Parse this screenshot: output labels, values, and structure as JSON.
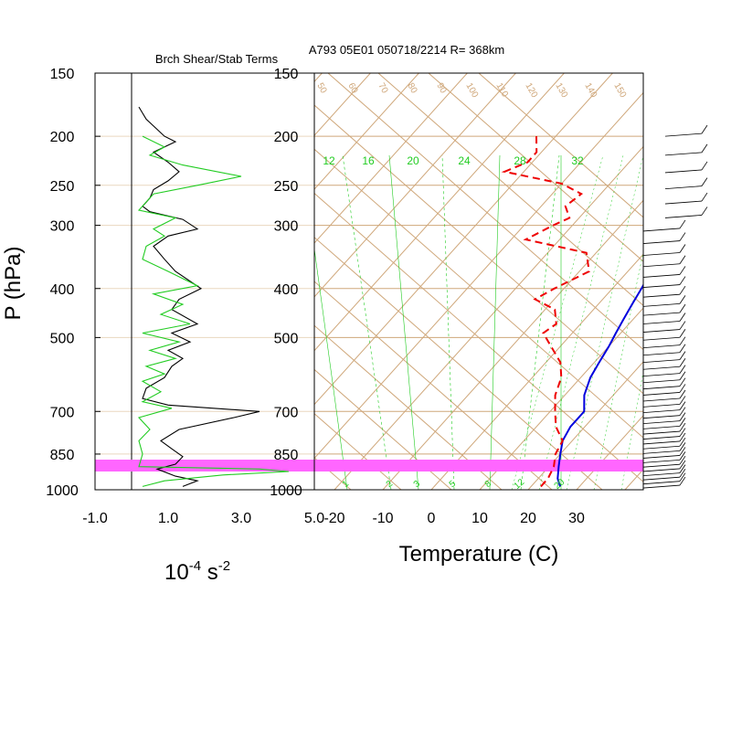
{
  "title": "A793 05E01 050718/2214 R= 368km",
  "left_panel_title": "Brch Shear/Stab Terms",
  "y_axis_label": "P (hPa)",
  "x_axis_label_right": "Temperature (C)",
  "left_units": {
    "base": "10",
    "exp1": "-4",
    "mid": " s",
    "exp2": "-2"
  },
  "pressure_ticks": [
    "150",
    "200",
    "250",
    "300",
    "400",
    "500",
    "700",
    "850",
    "1000"
  ],
  "left_x_ticks": [
    "-1.0",
    "1.0",
    "3.0",
    "5.0"
  ],
  "temp_x_ticks": [
    "-20",
    "-10",
    "0",
    "10",
    "20",
    "30"
  ],
  "mixing_ratio_labels_top": [
    "12",
    "16",
    "20",
    "24",
    "28",
    "32"
  ],
  "mixing_ratio_labels_bottom": [
    "1",
    "2",
    "3",
    "5",
    "8",
    "12",
    "20"
  ],
  "isotherm_labels": [
    "50",
    "60",
    "70",
    "80",
    "90",
    "100",
    "110",
    "120",
    "130",
    "140",
    "150"
  ],
  "colors": {
    "temperature": "#0000dd",
    "dewpoint": "#ee0000",
    "stability_term": "#000000",
    "shear_term": "#00dd00",
    "background_lines": "#cfa77a",
    "mixing_ratio": "#22cc22",
    "highlight_band": "#ff66ff",
    "grid": "#ead7bf"
  },
  "chart_data": [
    {
      "type": "line",
      "panel": "left",
      "title": "Brch Shear/Stab Terms",
      "xlim": [
        -1.0,
        5.0
      ],
      "ylim": [
        1000,
        150
      ],
      "series": [
        {
          "color": "#000000",
          "points": [
            [
              0.2,
              175
            ],
            [
              0.4,
              185
            ],
            [
              0.9,
              200
            ],
            [
              1.2,
              205
            ],
            [
              0.6,
              215
            ],
            [
              1.0,
              225
            ],
            [
              1.3,
              235
            ],
            [
              1.0,
              245
            ],
            [
              0.6,
              255
            ],
            [
              0.5,
              265
            ],
            [
              0.3,
              275
            ],
            [
              0.5,
              282
            ],
            [
              1.4,
              292
            ],
            [
              1.8,
              305
            ],
            [
              1.0,
              315
            ],
            [
              0.6,
              330
            ],
            [
              0.9,
              350
            ],
            [
              1.2,
              370
            ],
            [
              1.9,
              400
            ],
            [
              1.3,
              420
            ],
            [
              1.1,
              440
            ],
            [
              1.8,
              470
            ],
            [
              1.1,
              490
            ],
            [
              1.6,
              510
            ],
            [
              1.0,
              530
            ],
            [
              1.4,
              550
            ],
            [
              1.1,
              570
            ],
            [
              0.9,
              600
            ],
            [
              0.4,
              630
            ],
            [
              0.3,
              660
            ],
            [
              1.0,
              680
            ],
            [
              3.5,
              700
            ],
            [
              2.8,
              720
            ],
            [
              1.3,
              760
            ],
            [
              0.8,
              800
            ],
            [
              1.1,
              830
            ],
            [
              1.4,
              860
            ],
            [
              1.2,
              890
            ],
            [
              0.7,
              910
            ],
            [
              1.2,
              940
            ],
            [
              1.8,
              960
            ],
            [
              1.4,
              985
            ]
          ]
        },
        {
          "color": "#22cc22",
          "points": [
            [
              0.3,
              200
            ],
            [
              0.9,
              210
            ],
            [
              0.5,
              218
            ],
            [
              1.4,
              228
            ],
            [
              3.0,
              240
            ],
            [
              1.8,
              250
            ],
            [
              0.6,
              260
            ],
            [
              0.2,
              280
            ],
            [
              1.2,
              290
            ],
            [
              0.6,
              305
            ],
            [
              0.9,
              315
            ],
            [
              0.4,
              330
            ],
            [
              0.3,
              350
            ],
            [
              1.0,
              370
            ],
            [
              1.8,
              395
            ],
            [
              0.6,
              410
            ],
            [
              1.4,
              430
            ],
            [
              0.8,
              450
            ],
            [
              1.6,
              470
            ],
            [
              0.3,
              490
            ],
            [
              1.3,
              510
            ],
            [
              0.5,
              530
            ],
            [
              1.2,
              550
            ],
            [
              0.4,
              570
            ],
            [
              0.9,
              590
            ],
            [
              0.3,
              610
            ],
            [
              0.8,
              640
            ],
            [
              0.3,
              670
            ],
            [
              1.1,
              690
            ],
            [
              0.2,
              720
            ],
            [
              0.5,
              760
            ],
            [
              0.2,
              800
            ],
            [
              0.3,
              850
            ],
            [
              0.2,
              900
            ],
            [
              3.5,
              910
            ],
            [
              4.3,
              920
            ],
            [
              2.5,
              935
            ],
            [
              0.9,
              960
            ],
            [
              0.3,
              985
            ]
          ]
        }
      ]
    },
    {
      "type": "line",
      "panel": "right",
      "title": "A793 05E01 050718/2214 R= 368km",
      "xlabel": "Temperature (C)",
      "ylabel": "P (hPa)",
      "xlim": [
        -23,
        42
      ],
      "ylim": [
        1000,
        150
      ],
      "series": [
        {
          "color": "#0000dd",
          "style": "solid",
          "points": [
            [
              -19,
              175
            ],
            [
              -15,
              190
            ],
            [
              -12,
              205
            ],
            [
              -10,
              220
            ],
            [
              -8,
              235
            ],
            [
              -6,
              250
            ],
            [
              -4,
              265
            ],
            [
              -2,
              280
            ],
            [
              0,
              295
            ],
            [
              1,
              310
            ],
            [
              2,
              330
            ],
            [
              3,
              350
            ],
            [
              5,
              375
            ],
            [
              6,
              400
            ],
            [
              7,
              430
            ],
            [
              8,
              460
            ],
            [
              9,
              490
            ],
            [
              10,
              520
            ],
            [
              11,
              560
            ],
            [
              12,
              600
            ],
            [
              14,
              650
            ],
            [
              17,
              700
            ],
            [
              17,
              750
            ],
            [
              18,
              800
            ],
            [
              20,
              850
            ],
            [
              22,
              900
            ],
            [
              24,
              950
            ],
            [
              26,
              985
            ]
          ]
        },
        {
          "color": "#ee0000",
          "style": "dashed",
          "points": [
            [
              -44,
              200
            ],
            [
              -41,
              215
            ],
            [
              -41,
              225
            ],
            [
              -44,
              235
            ],
            [
              -30,
              248
            ],
            [
              -24,
              260
            ],
            [
              -25,
              275
            ],
            [
              -22,
              290
            ],
            [
              -24,
              300
            ],
            [
              -27,
              320
            ],
            [
              -12,
              340
            ],
            [
              -8,
              370
            ],
            [
              -12,
              400
            ],
            [
              -14,
              420
            ],
            [
              -8,
              440
            ],
            [
              -5,
              470
            ],
            [
              -6,
              490
            ],
            [
              -2,
              520
            ],
            [
              3,
              560
            ],
            [
              6,
              600
            ],
            [
              8,
              650
            ],
            [
              11,
              700
            ],
            [
              14,
              750
            ],
            [
              18,
              800
            ],
            [
              19,
              850
            ],
            [
              21,
              900
            ],
            [
              22,
              950
            ],
            [
              22,
              985
            ]
          ]
        }
      ]
    }
  ]
}
